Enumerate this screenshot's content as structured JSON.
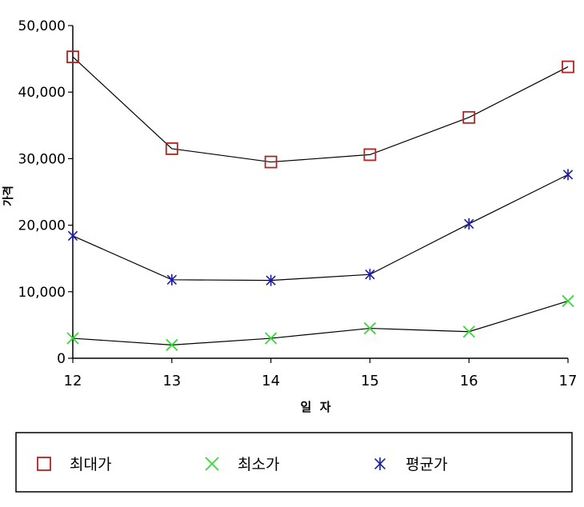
{
  "chart_data": {
    "type": "line",
    "title": "",
    "xlabel": "일  자",
    "ylabel": "가격",
    "x": [
      "12",
      "13",
      "14",
      "15",
      "16",
      "17"
    ],
    "ylim": [
      0,
      50000
    ],
    "yticks": [
      0,
      10000,
      20000,
      30000,
      40000,
      50000
    ],
    "ytick_labels": [
      "0",
      "10,000",
      "20,000",
      "30,000",
      "40,000",
      "50,000"
    ],
    "grid": false,
    "legend_position": "bottom",
    "series": [
      {
        "name": "최대가",
        "marker": "square",
        "color": "#b22222",
        "values": [
          45300,
          31500,
          29500,
          30600,
          36200,
          43800
        ]
      },
      {
        "name": "최소가",
        "marker": "x",
        "color": "#33dd33",
        "values": [
          3000,
          2000,
          3000,
          4500,
          4000,
          8600
        ]
      },
      {
        "name": "평균가",
        "marker": "asterisk",
        "color": "#1a1aa8",
        "values": [
          18400,
          11800,
          11700,
          12600,
          20200,
          27600
        ]
      }
    ],
    "line_color": "#000000"
  }
}
